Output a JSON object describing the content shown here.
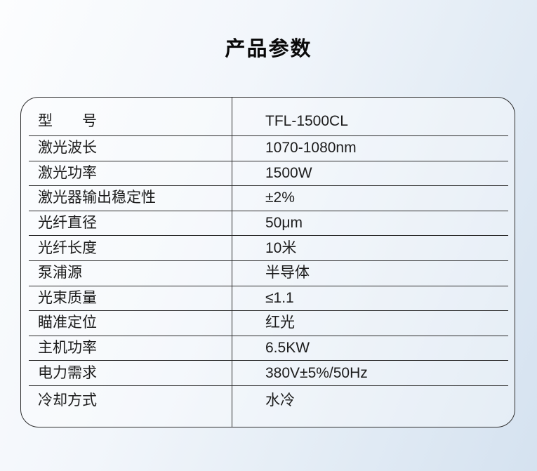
{
  "page": {
    "title": "产品参数"
  },
  "table": {
    "rows": [
      {
        "label": "型　　号",
        "value": "TFL-1500CL"
      },
      {
        "label": "激光波长",
        "value": "1070-1080nm"
      },
      {
        "label": "激光功率",
        "value": "1500W"
      },
      {
        "label": "激光器输出稳定性",
        "value": "±2%"
      },
      {
        "label": "光纤直径",
        "value": "50μm"
      },
      {
        "label": "光纤长度",
        "value": "10米"
      },
      {
        "label": "泵浦源",
        "value": "半导体"
      },
      {
        "label": "光束质量",
        "value": "≤1.1"
      },
      {
        "label": "瞄准定位",
        "value": "红光"
      },
      {
        "label": "主机功率",
        "value": "6.5KW"
      },
      {
        "label": "电力需求",
        "value": "380V±5%/50Hz"
      },
      {
        "label": "冷却方式",
        "value": "水冷"
      }
    ]
  },
  "colors": {
    "background_start": "#fcfdfe",
    "background_end": "#d5e2f0",
    "table_border": "#2d2d2d",
    "text": "#1c1c1c",
    "title_text": "#0a0a0a"
  }
}
